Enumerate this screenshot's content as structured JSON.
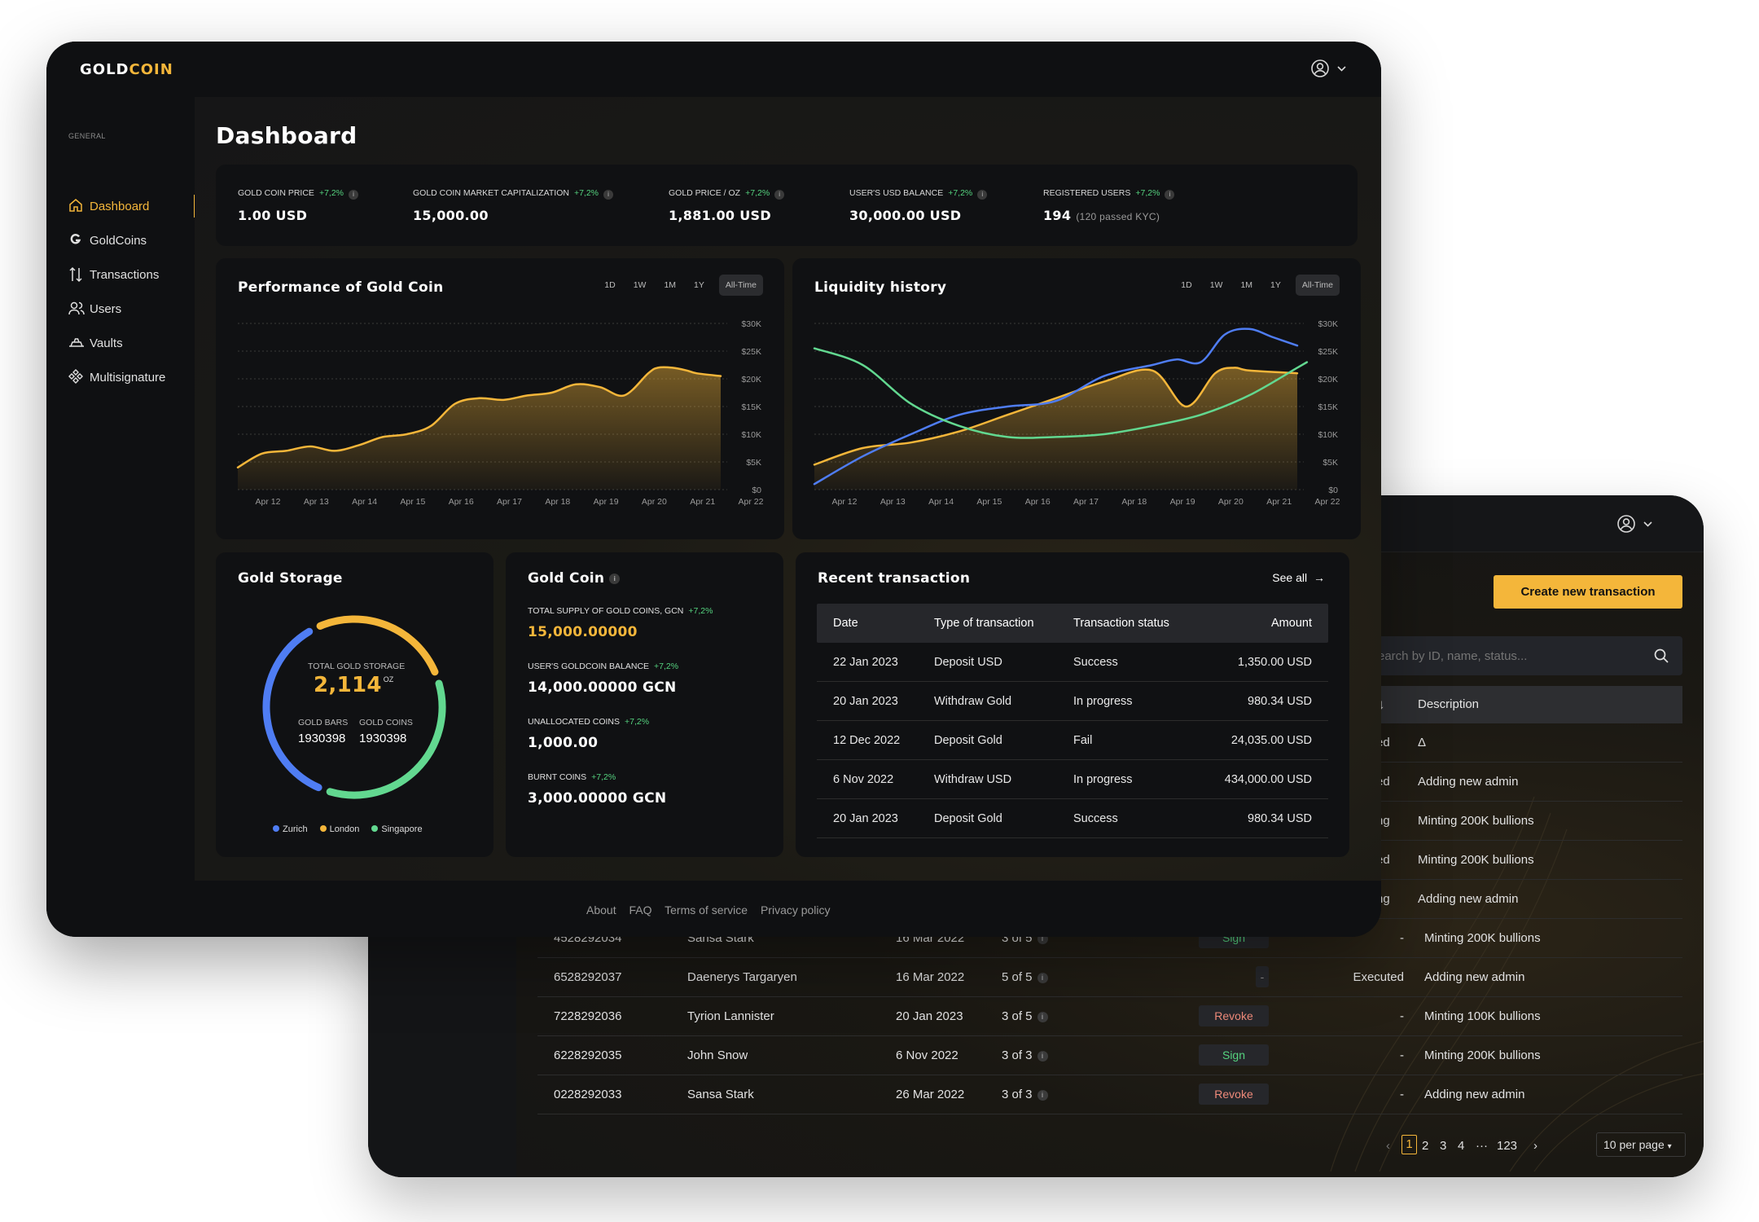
{
  "back": {
    "create_label": "Create new transaction",
    "search_placeholder": "earch by ID, name, status...",
    "description_header": "Description",
    "partial_rows": [
      {
        "status": "ed",
        "description": "Δ"
      },
      {
        "status": "ed",
        "description": "Adding new admin"
      },
      {
        "status": "ng",
        "description": "Minting 200K bullions"
      },
      {
        "status": "ed",
        "description": "Minting 200K bullions"
      },
      {
        "status": "ng",
        "description": "Adding new admin"
      }
    ],
    "rows": [
      {
        "id": "4528292034",
        "name": "Sansa Stark",
        "date": "16 Mar 2022",
        "signs": "3 of 5",
        "action": "Sign",
        "status": "-",
        "description": "Minting 200K bullions"
      },
      {
        "id": "6528292037",
        "name": "Daenerys Targaryen",
        "date": "16 Mar 2022",
        "signs": "5 of 5",
        "action": "-",
        "status": "Executed",
        "description": "Adding new admin"
      },
      {
        "id": "7228292036",
        "name": "Tyrion Lannister",
        "date": "20 Jan 2023",
        "signs": "3 of 5",
        "action": "Revoke",
        "status": "-",
        "description": "Minting 100K bullions"
      },
      {
        "id": "6228292035",
        "name": "John Snow",
        "date": "6 Nov 2022",
        "signs": "3 of 3",
        "action": "Sign",
        "status": "-",
        "description": "Minting 200K bullions"
      },
      {
        "id": "0228292033",
        "name": "Sansa Stark",
        "date": "26 Mar 2022",
        "signs": "3 of 3",
        "action": "Revoke",
        "status": "-",
        "description": "Adding new admin"
      }
    ],
    "pagination": {
      "pages": [
        "1",
        "2",
        "3",
        "4",
        "···",
        "123"
      ],
      "current": "1",
      "per_page": "10 per page"
    }
  },
  "front": {
    "logo_part1": "GOLD",
    "logo_part2": "COIN",
    "sidebar": {
      "section": "GENERAL",
      "items": [
        {
          "label": "Dashboard",
          "icon": "home-icon",
          "active": true
        },
        {
          "label": "GoldCoins",
          "icon": "goldcoin-icon"
        },
        {
          "label": "Transactions",
          "icon": "transactions-icon"
        },
        {
          "label": "Users",
          "icon": "users-icon"
        },
        {
          "label": "Vaults",
          "icon": "vault-icon"
        },
        {
          "label": "Multisignature",
          "icon": "multisignature-icon"
        }
      ]
    },
    "title": "Dashboard",
    "stats": [
      {
        "label": "GOLD COIN PRICE",
        "change": "+7,2%",
        "value": "1.00 USD",
        "note": ""
      },
      {
        "label": "GOLD COIN MARKET CAPITALIZATION",
        "change": "+7,2%",
        "value": "15,000.00",
        "note": ""
      },
      {
        "label": "GOLD PRICE / OZ",
        "change": "+7,2%",
        "value": "1,881.00 USD",
        "note": ""
      },
      {
        "label": "USER'S USD BALANCE",
        "change": "+7,2%",
        "value": "30,000.00 USD",
        "note": ""
      },
      {
        "label": "REGISTERED USERS",
        "change": "+7,2%",
        "value": "194",
        "note": "(120 passed KYC)"
      }
    ],
    "range_options": [
      "1D",
      "1W",
      "1M",
      "1Y",
      "All-Time"
    ],
    "range_selected": "All-Time",
    "gold_storage": {
      "title": "Gold Storage",
      "total_label": "TOTAL GOLD STORAGE",
      "total_value": "2,114",
      "total_unit": "OZ",
      "bars_label": "GOLD BARS",
      "bars_value": "1930398",
      "coins_label": "GOLD COINS",
      "coins_value": "1930398",
      "legend": [
        {
          "name": "Zurich",
          "color": "#4f7df3"
        },
        {
          "name": "London",
          "color": "#f4b63a"
        },
        {
          "name": "Singapore",
          "color": "#62d890"
        }
      ]
    },
    "gold_coin": {
      "title": "Gold Coin",
      "items": [
        {
          "label": "TOTAL SUPPLY OF GOLD COINS, GCN",
          "change": "+7,2%",
          "value": "15,000.00000",
          "gold": true
        },
        {
          "label": "USER'S GOLDCOIN BALANCE",
          "change": "+7,2%",
          "value": "14,000.00000 GCN",
          "gold": false
        },
        {
          "label": "UNALLOCATED COINS",
          "change": "+7,2%",
          "value": "1,000.00",
          "gold": false
        },
        {
          "label": "BURNT COINS",
          "change": "+7,2%",
          "value": "3,000.00000 GCN",
          "gold": false
        }
      ]
    },
    "recent": {
      "title": "Recent transaction",
      "see_all": "See all",
      "headers": [
        "Date",
        "Type of transaction",
        "Transaction status",
        "Amount"
      ],
      "rows": [
        [
          "22 Jan 2023",
          "Deposit USD",
          "Success",
          "1,350.00 USD"
        ],
        [
          "20 Jan 2023",
          "Withdraw Gold",
          "In progress",
          "980.34 USD"
        ],
        [
          "12 Dec 2022",
          "Deposit Gold",
          "Fail",
          "24,035.00 USD"
        ],
        [
          "6 Nov 2022",
          "Withdraw USD",
          "In progress",
          "434,000.00 USD"
        ],
        [
          "20 Jan 2023",
          "Deposit Gold",
          "Success",
          "980.34 USD"
        ]
      ]
    },
    "footer_links": [
      "About",
      "FAQ",
      "Terms of service",
      "Privacy policy"
    ],
    "colors": {
      "accent": "#f4b63a",
      "positive": "#55d37f",
      "blue": "#4f7df3",
      "green": "#62d890"
    }
  },
  "chart_data": [
    {
      "type": "area",
      "title": "Performance of Gold Coin",
      "x": [
        "Apr 12",
        "Apr 13",
        "Apr 14",
        "Apr 15",
        "Apr 16",
        "Apr 17",
        "Apr 18",
        "Apr 19",
        "Apr 20",
        "Apr 21",
        "Apr 22"
      ],
      "y_ticks": [
        "$0",
        "$5K",
        "$10K",
        "$15K",
        "$20K",
        "$25K",
        "$30K"
      ],
      "ylim": [
        0,
        30000
      ],
      "grid": true,
      "series": [
        {
          "color": "#f4b63a",
          "points": [
            [
              0,
              4000
            ],
            [
              0.5,
              6500
            ],
            [
              1,
              7000
            ],
            [
              1.5,
              7800
            ],
            [
              2,
              7000
            ],
            [
              2.5,
              8000
            ],
            [
              3,
              9500
            ],
            [
              3.5,
              10000
            ],
            [
              4,
              11500
            ],
            [
              4.5,
              15500
            ],
            [
              5,
              16500
            ],
            [
              5.5,
              16200
            ],
            [
              6,
              17000
            ],
            [
              6.5,
              17500
            ],
            [
              7,
              19000
            ],
            [
              7.5,
              18500
            ],
            [
              8,
              17000
            ],
            [
              8.5,
              21000
            ],
            [
              8.7,
              22000
            ],
            [
              9,
              22000
            ],
            [
              9.3,
              21500
            ],
            [
              9.5,
              21000
            ],
            [
              10,
              20500
            ]
          ]
        }
      ]
    },
    {
      "type": "line",
      "title": "Liquidity history",
      "x": [
        "Apr 12",
        "Apr 13",
        "Apr 14",
        "Apr 15",
        "Apr 16",
        "Apr 17",
        "Apr 18",
        "Apr 19",
        "Apr 20",
        "Apr 21",
        "Apr 22"
      ],
      "y_ticks": [
        "$0",
        "$5K",
        "$10K",
        "$15K",
        "$20K",
        "$25K",
        "$30K"
      ],
      "ylim": [
        0,
        30000
      ],
      "grid": true,
      "series": [
        {
          "color": "#f4b63a",
          "area": true,
          "points": [
            [
              0,
              4500
            ],
            [
              1,
              7500
            ],
            [
              2,
              8500
            ],
            [
              3,
              10500
            ],
            [
              4,
              13500
            ],
            [
              5,
              16500
            ],
            [
              6,
              19500
            ],
            [
              7,
              21500
            ],
            [
              7.7,
              15000
            ],
            [
              8.3,
              21000
            ],
            [
              8.7,
              22000
            ],
            [
              9,
              21500
            ],
            [
              10,
              21000
            ]
          ]
        },
        {
          "color": "#4f7df3",
          "area": false,
          "points": [
            [
              0,
              1000
            ],
            [
              1,
              6000
            ],
            [
              2,
              10000
            ],
            [
              3,
              13500
            ],
            [
              4,
              15000
            ],
            [
              5,
              16000
            ],
            [
              6,
              20500
            ],
            [
              7,
              22500
            ],
            [
              7.5,
              23500
            ],
            [
              8,
              23000
            ],
            [
              8.5,
              28000
            ],
            [
              9,
              29000
            ],
            [
              9.5,
              27500
            ],
            [
              10,
              26000
            ]
          ]
        },
        {
          "color": "#62d890",
          "area": false,
          "points": [
            [
              0,
              25500
            ],
            [
              1,
              22500
            ],
            [
              2,
              15500
            ],
            [
              3,
              11500
            ],
            [
              4,
              9500
            ],
            [
              5,
              9500
            ],
            [
              6,
              10000
            ],
            [
              7,
              11500
            ],
            [
              8,
              13500
            ],
            [
              9,
              17000
            ],
            [
              10,
              22000
            ],
            [
              10.2,
              23000
            ]
          ]
        }
      ]
    },
    {
      "type": "pie",
      "title": "Gold Storage",
      "categories": [
        "Zurich",
        "London",
        "Singapore"
      ],
      "values": [
        37,
        27,
        36
      ]
    }
  ]
}
